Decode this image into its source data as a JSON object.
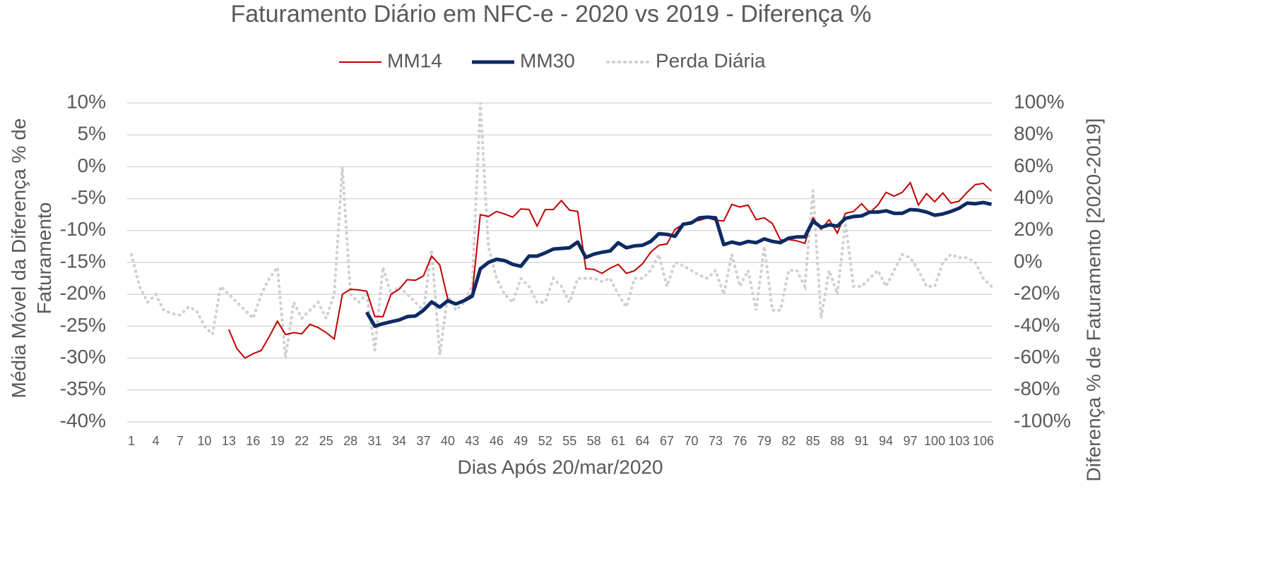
{
  "chart_data": {
    "type": "line",
    "title": "Faturamento Diário em NFC-e - 2020 vs 2019 - Diferença %",
    "x_label": "Dias Após 20/mar/2020",
    "y_label": "Média Móvel da Diferença % de Faturamento",
    "y2_label": "Diferença % de Faturamento [2020-2019]",
    "categories": [
      1,
      null,
      null,
      4,
      null,
      null,
      7,
      null,
      null,
      10,
      null,
      null,
      13,
      null,
      null,
      16,
      null,
      null,
      19,
      null,
      null,
      22,
      null,
      null,
      25,
      null,
      null,
      28,
      null,
      null,
      31,
      null,
      null,
      34,
      null,
      null,
      37,
      null,
      null,
      40,
      null,
      null,
      43,
      null,
      null,
      46,
      null,
      null,
      49,
      null,
      null,
      52,
      null,
      null,
      55,
      null,
      null,
      58,
      null,
      null,
      61,
      null,
      null,
      64,
      null,
      null,
      67,
      null,
      null,
      70,
      null,
      null,
      73,
      null,
      null,
      76,
      null,
      null,
      79,
      null,
      null,
      82,
      null,
      null,
      85,
      null,
      null,
      88,
      null,
      null,
      91,
      null,
      null,
      94,
      null,
      null,
      97,
      null,
      null,
      100,
      null,
      null,
      103,
      null,
      null,
      106,
      null
    ],
    "ylim": [
      -40,
      10
    ],
    "yticks": [
      {
        "value": -40,
        "label": "-40%"
      },
      {
        "value": -35,
        "label": "-35%"
      },
      {
        "value": -30,
        "label": "-30%"
      },
      {
        "value": -25,
        "label": "-25%"
      },
      {
        "value": -20,
        "label": "-20%"
      },
      {
        "value": -15,
        "label": "-15%"
      },
      {
        "value": -10,
        "label": "-10%"
      },
      {
        "value": -5,
        "label": "-5%"
      },
      {
        "value": 0,
        "label": "0%"
      },
      {
        "value": 5,
        "label": "5%"
      },
      {
        "value": 10,
        "label": "10%"
      }
    ],
    "y2lim": [
      -100,
      100
    ],
    "y2ticks": [
      {
        "value": -100,
        "label": "-100%"
      },
      {
        "value": -80,
        "label": "-80%"
      },
      {
        "value": -60,
        "label": "-60%"
      },
      {
        "value": -40,
        "label": "-40%"
      },
      {
        "value": -20,
        "label": "-20%"
      },
      {
        "value": 0,
        "label": "0%"
      },
      {
        "value": 20,
        "label": "20%"
      },
      {
        "value": 40,
        "label": "40%"
      },
      {
        "value": 60,
        "label": "60%"
      },
      {
        "value": 80,
        "label": "80%"
      },
      {
        "value": 100,
        "label": "100%"
      }
    ],
    "grid": true,
    "legend": "top",
    "series": [
      {
        "name": "MM14",
        "color": "#c00000",
        "style": "solid",
        "values": [
          null,
          null,
          null,
          null,
          null,
          null,
          null,
          null,
          null,
          null,
          null,
          null,
          -25.5,
          -28.5,
          -30,
          -29.3,
          -28.8,
          -26.6,
          -24.2,
          -26.3,
          -26,
          -26.2,
          -24.7,
          -25.2,
          -26,
          -27,
          -20,
          -19.2,
          -19.3,
          -19.5,
          -23.5,
          -23.5,
          -20,
          -19.2,
          -17.7,
          -17.8,
          -17.1,
          -14,
          -15.4,
          -20.8,
          -21.5,
          -20.8,
          -20,
          -7.5,
          -7.8,
          -7,
          -7.4,
          -7.9,
          -6.6,
          -6.7,
          -9.3,
          -6.7,
          -6.7,
          -5.3,
          -6.8,
          -7,
          -16,
          -16.1,
          -16.7,
          -15.9,
          -15.3,
          -16.7,
          -16.3,
          -15.2,
          -13.4,
          -12.3,
          -12.1,
          -9.8,
          -9,
          -8.6,
          -8.4,
          -8,
          -8.4,
          -8.5,
          -5.9,
          -6.3,
          -6,
          -8.3,
          -8,
          -8.9,
          -11.5,
          -11.4,
          -11.6,
          -12,
          -8,
          -9.8,
          -8.3,
          -10.4,
          -7.3,
          -7,
          -5.8,
          -7.2,
          -6,
          -4,
          -4.6,
          -4,
          -2.5,
          -6,
          -4.2,
          -5.5,
          -4.1,
          -5.7,
          -5.4,
          -4,
          -2.8,
          -2.6,
          -3.8
        ]
      },
      {
        "name": "MM30",
        "color": "#0d2a63",
        "style": "thick",
        "values": [
          null,
          null,
          null,
          null,
          null,
          null,
          null,
          null,
          null,
          null,
          null,
          null,
          null,
          null,
          null,
          null,
          null,
          null,
          null,
          null,
          null,
          null,
          null,
          null,
          null,
          null,
          null,
          null,
          null,
          -22.8,
          -25,
          -24.6,
          -24.3,
          -24,
          -23.5,
          -23.4,
          -22.5,
          -21.2,
          -22,
          -21,
          -21.5,
          -21,
          -20.3,
          -16,
          -15,
          -14.5,
          -14.7,
          -15.3,
          -15.6,
          -14,
          -14,
          -13.5,
          -12.9,
          -12.8,
          -12.7,
          -11.8,
          -14.2,
          -13.7,
          -13.4,
          -13.2,
          -11.9,
          -12.7,
          -12.4,
          -12.3,
          -11.7,
          -10.5,
          -10.6,
          -10.9,
          -9,
          -8.8,
          -8,
          -7.9,
          -8,
          -12.2,
          -11.8,
          -12.1,
          -11.7,
          -11.9,
          -11.3,
          -11.7,
          -11.9,
          -11.2,
          -11,
          -11,
          -8.5,
          -9.5,
          -9.1,
          -9.3,
          -8.1,
          -7.8,
          -7.7,
          -7.1,
          -7.1,
          -6.9,
          -7.3,
          -7.3,
          -6.7,
          -6.8,
          -7.1,
          -7.6,
          -7.4,
          -7,
          -6.5,
          -5.7,
          -5.8,
          -5.6,
          -5.9
        ]
      },
      {
        "name": "Perda Diária",
        "color": "#d0d0d0",
        "style": "dotted",
        "axis": "y2",
        "values": [
          5,
          -15,
          -25,
          -20,
          -30,
          -32,
          -33,
          -28,
          -30,
          -40,
          -45,
          -15,
          -20,
          -25,
          -30,
          -35,
          -20,
          -10,
          -3,
          -60,
          -25,
          -35,
          -30,
          -25,
          -35,
          -20,
          60,
          -20,
          -25,
          -20,
          -55,
          -3,
          -20,
          -15,
          -20,
          -25,
          -30,
          8,
          -58,
          -20,
          -30,
          -25,
          -15,
          100,
          10,
          -10,
          -20,
          -25,
          -10,
          -15,
          -25,
          -25,
          -10,
          -15,
          -25,
          -10,
          -10,
          -10,
          -12,
          -10,
          -20,
          -28,
          -10,
          -10,
          -5,
          5,
          -15,
          0,
          -2,
          -5,
          -8,
          -10,
          -5,
          -20,
          5,
          -15,
          -5,
          -30,
          10,
          -30,
          -30,
          -5,
          -5,
          -15,
          45,
          -35,
          -5,
          -20,
          25,
          -15,
          -15,
          -10,
          -5,
          -15,
          -5,
          5,
          3,
          -5,
          -15,
          -15,
          0,
          5,
          3,
          3,
          0,
          -10,
          -15
        ]
      }
    ]
  }
}
